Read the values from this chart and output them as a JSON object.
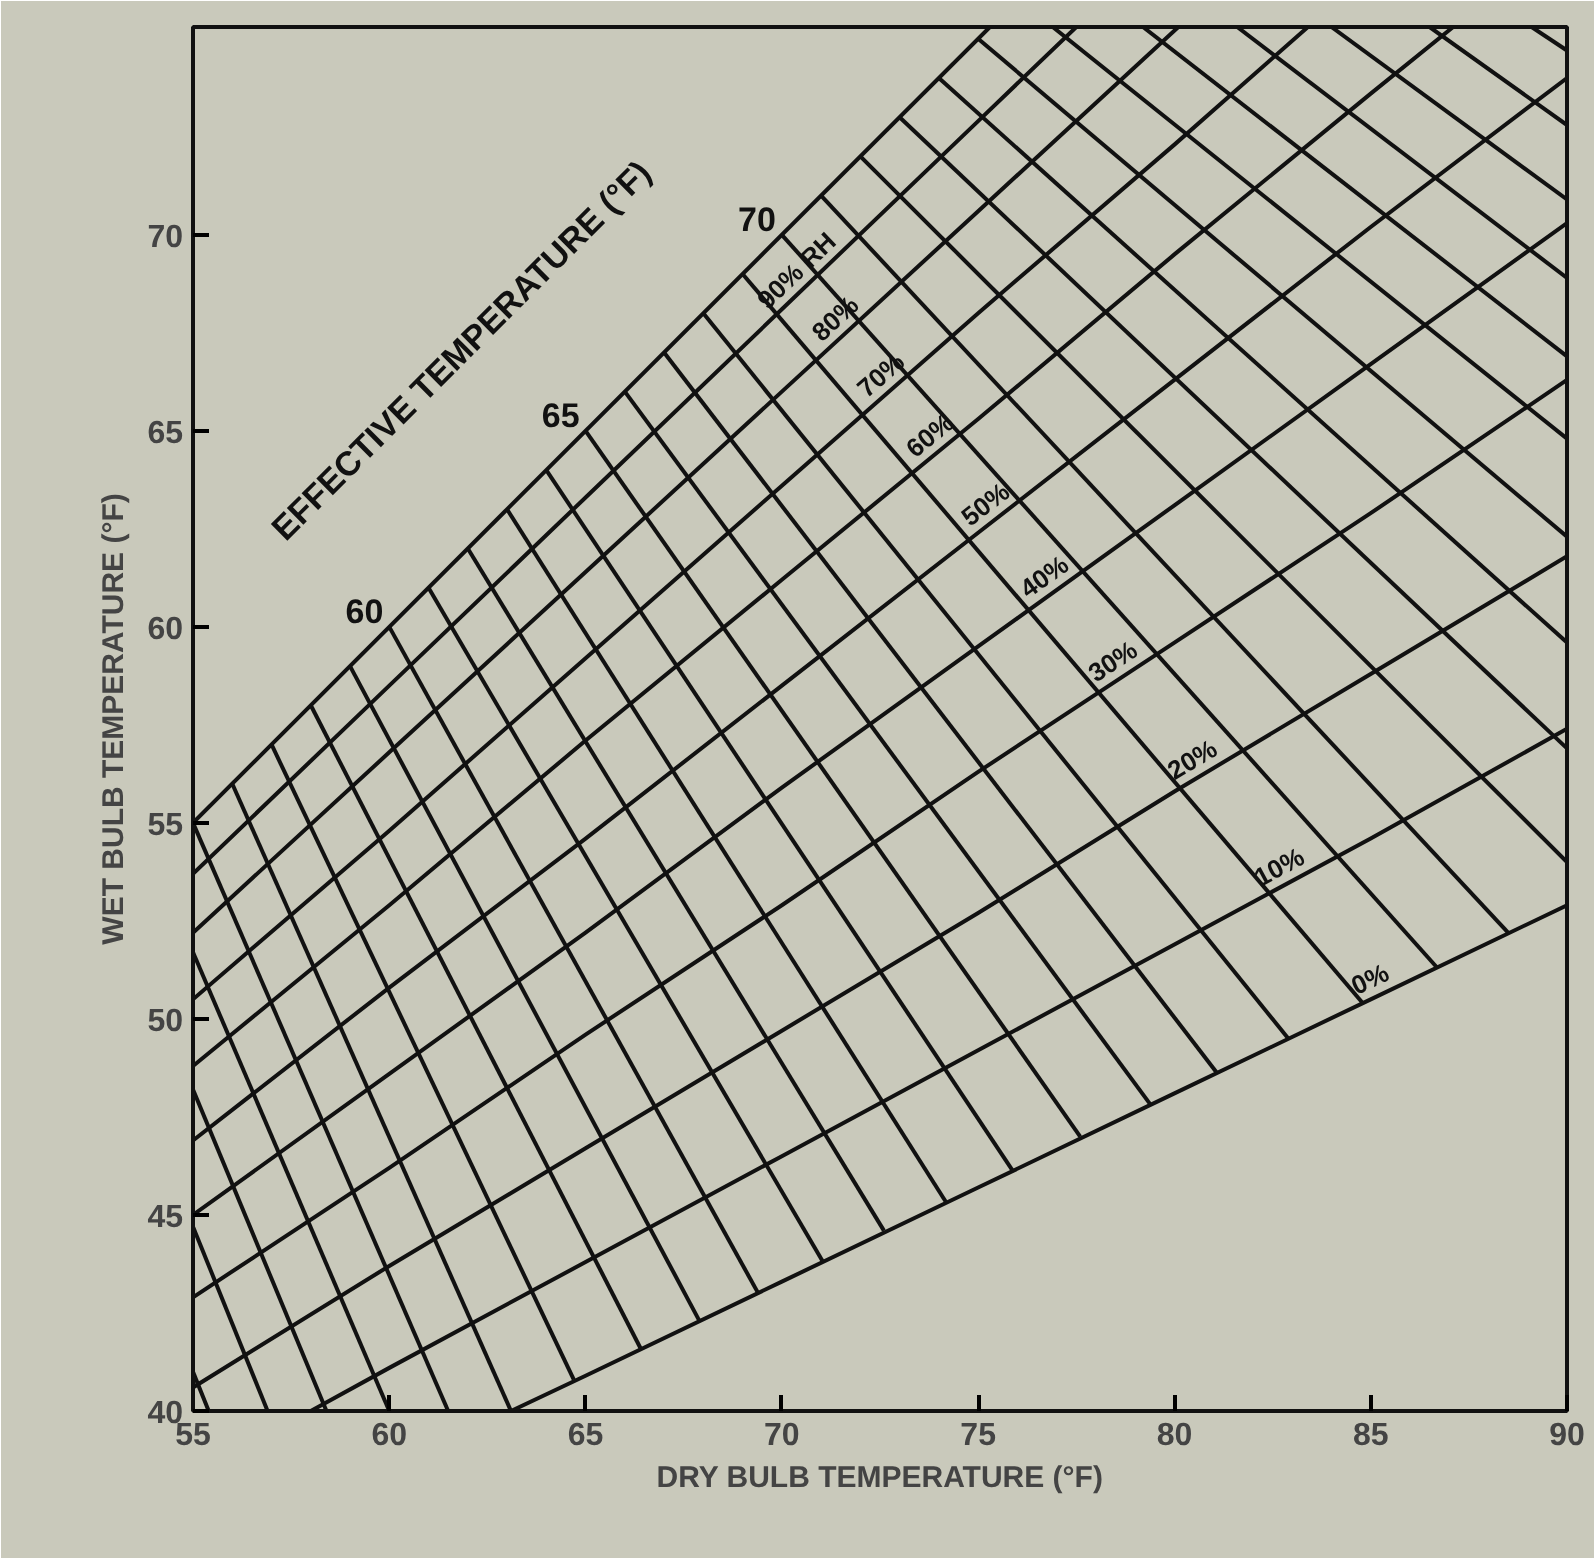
{
  "chart_data": {
    "type": "line",
    "xlabel": "DRY BULB TEMPERATURE (°F)",
    "ylabel": "WET BULB TEMPERATURE (°F)",
    "annotations": [
      "EFFECTIVE TEMPERATURE (°F)"
    ],
    "xlim": [
      55,
      90
    ],
    "ylim": [
      40,
      75.3
    ],
    "xticks": [
      55,
      60,
      65,
      70,
      75,
      80,
      85,
      90
    ],
    "yticks": [
      40,
      45,
      50,
      55,
      60,
      65,
      70
    ],
    "grid": false,
    "legend": false,
    "marker": "none",
    "line_style": "solid",
    "series": [
      {
        "color": "#111111",
        "x": [
          55,
          75.3
        ],
        "values": [
          55,
          75.3
        ]
      },
      {
        "name": "90% RH",
        "color": "#111111",
        "x": [
          55,
          60,
          65,
          70,
          75,
          77.5
        ],
        "values": [
          53.7,
          58.5,
          63.3,
          68.1,
          72.9,
          75.3
        ]
      },
      {
        "name": "80%",
        "color": "#111111",
        "x": [
          55,
          60,
          65,
          70,
          75,
          80.1
        ],
        "values": [
          52.2,
          56.8,
          61.4,
          66.0,
          70.6,
          75.3
        ]
      },
      {
        "name": "70%",
        "color": "#111111",
        "x": [
          55,
          60,
          65,
          70,
          75,
          80,
          83.4
        ],
        "values": [
          50.5,
          54.8,
          59.2,
          63.6,
          68.0,
          72.3,
          75.3
        ]
      },
      {
        "name": "60%",
        "color": "#111111",
        "x": [
          55,
          60,
          65,
          70,
          75,
          80,
          85,
          87.1
        ],
        "values": [
          48.8,
          52.9,
          57.1,
          61.2,
          65.3,
          69.5,
          73.6,
          75.3
        ]
      },
      {
        "name": "50%",
        "color": "#111111",
        "x": [
          55,
          60,
          65,
          70,
          75,
          80,
          85,
          90
        ],
        "values": [
          46.9,
          50.8,
          54.6,
          58.5,
          62.4,
          66.3,
          70.2,
          74.0
        ]
      },
      {
        "name": "40%",
        "color": "#111111",
        "x": [
          55,
          60,
          65,
          70,
          75,
          80,
          85,
          90
        ],
        "values": [
          45.0,
          48.6,
          52.2,
          55.9,
          59.5,
          63.1,
          66.7,
          70.3
        ]
      },
      {
        "name": "30%",
        "color": "#111111",
        "x": [
          55,
          60,
          65,
          70,
          75,
          80,
          85,
          90
        ],
        "values": [
          42.9,
          46.2,
          49.6,
          52.9,
          56.3,
          59.6,
          62.9,
          66.3
        ]
      },
      {
        "name": "20%",
        "color": "#111111",
        "x": [
          55,
          60,
          65,
          70,
          75,
          80,
          85,
          90
        ],
        "values": [
          40.6,
          43.7,
          46.7,
          49.7,
          52.7,
          55.8,
          58.8,
          61.8
        ]
      },
      {
        "name": "10%",
        "color": "#111111",
        "x": [
          58.0,
          60,
          65,
          70,
          75,
          80,
          85,
          90
        ],
        "values": [
          40.0,
          41.1,
          43.8,
          46.5,
          49.2,
          51.9,
          54.6,
          57.4
        ]
      },
      {
        "name": "0%",
        "color": "#111111",
        "x": [
          63.1,
          65,
          70,
          75,
          80,
          85,
          90
        ],
        "values": [
          40.0,
          40.9,
          43.3,
          45.7,
          48.1,
          50.5,
          52.9
        ]
      },
      {
        "color": "#111111",
        "x": [
          55,
          55.4
        ],
        "values": [
          41.0,
          40
        ]
      },
      {
        "color": "#111111",
        "x": [
          55,
          56.9
        ],
        "values": [
          44.7,
          40
        ]
      },
      {
        "color": "#111111",
        "x": [
          55,
          58.4
        ],
        "values": [
          48.2,
          40
        ]
      },
      {
        "color": "#111111",
        "x": [
          55,
          60.0
        ],
        "values": [
          51.7,
          40
        ]
      },
      {
        "color": "#111111",
        "x": [
          55,
          61.5
        ],
        "values": [
          55,
          40
        ]
      },
      {
        "color": "#111111",
        "x": [
          56,
          63.1
        ],
        "values": [
          56,
          40.0
        ]
      },
      {
        "color": "#111111",
        "x": [
          57,
          64.7
        ],
        "values": [
          57,
          40.8
        ]
      },
      {
        "color": "#111111",
        "x": [
          58,
          66.4
        ],
        "values": [
          58,
          41.6
        ]
      },
      {
        "color": "#111111",
        "x": [
          59,
          67.9
        ],
        "values": [
          59,
          42.3
        ]
      },
      {
        "name": "60",
        "color": "#111111",
        "x": [
          60,
          69.4
        ],
        "values": [
          60,
          43.0
        ]
      },
      {
        "color": "#111111",
        "x": [
          61,
          71.05
        ],
        "values": [
          61,
          43.8
        ]
      },
      {
        "color": "#111111",
        "x": [
          62,
          72.6
        ],
        "values": [
          62,
          44.6
        ]
      },
      {
        "color": "#111111",
        "x": [
          63,
          74.2
        ],
        "values": [
          63,
          45.3
        ]
      },
      {
        "color": "#111111",
        "x": [
          64,
          75.9
        ],
        "values": [
          64,
          46.1
        ]
      },
      {
        "name": "65",
        "color": "#111111",
        "x": [
          65,
          77.6
        ],
        "values": [
          65,
          47.0
        ]
      },
      {
        "color": "#111111",
        "x": [
          66,
          79.4
        ],
        "values": [
          66,
          47.8
        ]
      },
      {
        "color": "#111111",
        "x": [
          67,
          81.1
        ],
        "values": [
          67,
          48.6
        ]
      },
      {
        "color": "#111111",
        "x": [
          68,
          82.9
        ],
        "values": [
          68,
          49.5
        ]
      },
      {
        "color": "#111111",
        "x": [
          69,
          84.8
        ],
        "values": [
          69,
          50.4
        ]
      },
      {
        "name": "70",
        "color": "#111111",
        "x": [
          70,
          86.7
        ],
        "values": [
          70,
          51.3
        ]
      },
      {
        "color": "#111111",
        "x": [
          71,
          88.5
        ],
        "values": [
          71,
          52.2
        ]
      },
      {
        "color": "#111111",
        "x": [
          72,
          90
        ],
        "values": [
          72,
          54.0
        ]
      },
      {
        "color": "#111111",
        "x": [
          73,
          90
        ],
        "values": [
          73,
          56.9
        ]
      },
      {
        "color": "#111111",
        "x": [
          74,
          90
        ],
        "values": [
          74,
          59.6
        ]
      },
      {
        "color": "#111111",
        "x": [
          75,
          90
        ],
        "values": [
          75,
          62.3
        ]
      },
      {
        "color": "#111111",
        "x": [
          76.9,
          90
        ],
        "values": [
          75.3,
          64.8
        ]
      },
      {
        "color": "#111111",
        "x": [
          79.2,
          90
        ],
        "values": [
          75.3,
          66.9
        ]
      },
      {
        "color": "#111111",
        "x": [
          81.6,
          90
        ],
        "values": [
          75.3,
          68.9
        ]
      },
      {
        "color": "#111111",
        "x": [
          84.0,
          90
        ],
        "values": [
          75.3,
          70.9
        ]
      },
      {
        "color": "#111111",
        "x": [
          86.5,
          90
        ],
        "values": [
          75.3,
          72.8
        ]
      },
      {
        "color": "#111111",
        "x": [
          89.1,
          90
        ],
        "values": [
          75.3,
          74.7
        ]
      }
    ]
  }
}
